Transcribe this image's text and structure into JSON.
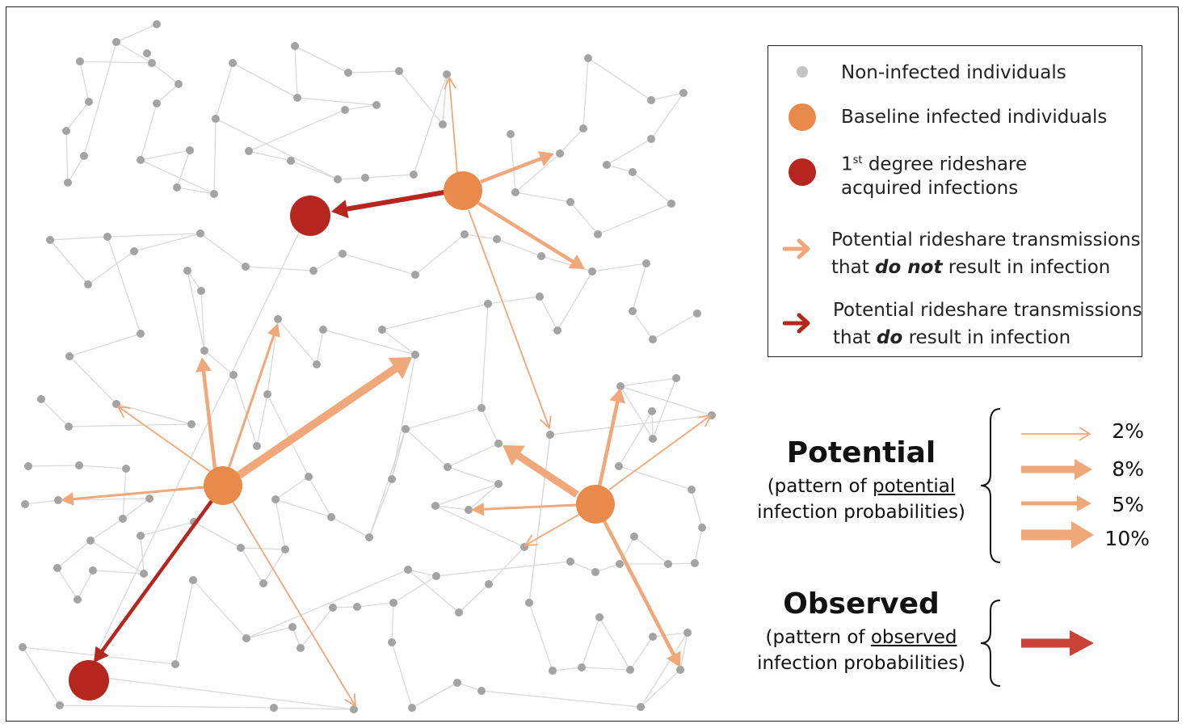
{
  "legend": {
    "non_infected": "Non-infected individuals",
    "baseline": "Baseline infected individuals",
    "first_degree_sup": "st",
    "first_degree_pre": "1",
    "first_degree_line1": " degree rideshare",
    "first_degree_line2": "acquired infections",
    "no_result_line1": "Potential rideshare transmissions",
    "no_result_line2_pre": "that ",
    "no_result_line2_em": "do not",
    "no_result_line2_post": " result in infection",
    "result_line1": "Potential rideshare transmissions",
    "result_line2_pre": "that ",
    "result_line2_em": "do",
    "result_line2_post": " result in infection"
  },
  "potential": {
    "title": "Potential",
    "sub_pre": "(pattern of ",
    "sub_u": "potential",
    "sub_line2": "infection probabilities)",
    "percentages": [
      "2%",
      "8%",
      "5%",
      "10%"
    ]
  },
  "observed": {
    "title": "Observed",
    "sub_pre": "(pattern of ",
    "sub_u": "observed",
    "sub_line2": "infection probabilities)"
  },
  "colors": {
    "node_gray": "#a3a3a3",
    "edge_gray": "#d9d9d9",
    "baseline": "#e88a4a",
    "infected": "#b5261e",
    "arrow_light": "#f0a77a",
    "arrow_red": "#c9423a"
  }
}
